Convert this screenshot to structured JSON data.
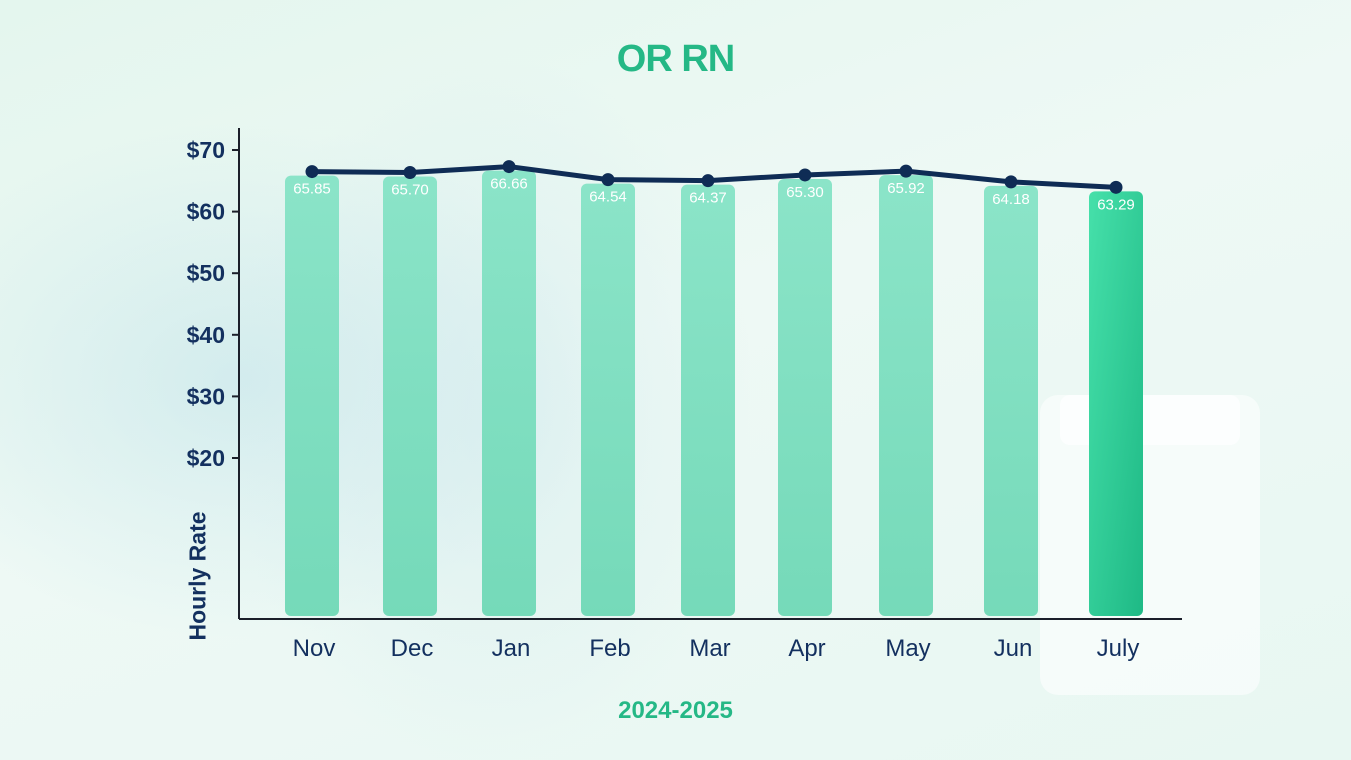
{
  "chart_data": {
    "type": "bar",
    "title": "OR RN",
    "xlabel": "2024-2025",
    "ylabel": "Hourly Rate",
    "categories": [
      "Nov",
      "Dec",
      "Jan",
      "Feb",
      "Mar",
      "Apr",
      "May",
      "Jun",
      "July"
    ],
    "values": [
      65.85,
      65.7,
      66.66,
      64.54,
      64.37,
      65.3,
      65.92,
      64.18,
      63.29
    ],
    "data_labels": [
      "65.85",
      "65.70",
      "66.66",
      "64.54",
      "64.37",
      "65.30",
      "65.92",
      "64.18",
      "63.29"
    ],
    "line_series": [
      65.85,
      65.7,
      66.66,
      64.54,
      64.37,
      65.3,
      65.92,
      64.18,
      63.29
    ],
    "yticks": [
      20,
      30,
      40,
      50,
      60,
      70
    ],
    "ytick_labels": [
      "$20",
      "$30",
      "$40",
      "$50",
      "$60",
      "$70"
    ],
    "grid": false,
    "legend": "none",
    "colors": {
      "bar": "#7fe0c0",
      "bar_highlight": "#2ed197",
      "line": "#0f2c55",
      "title": "#25b886",
      "axis_text": "#13305f"
    }
  }
}
